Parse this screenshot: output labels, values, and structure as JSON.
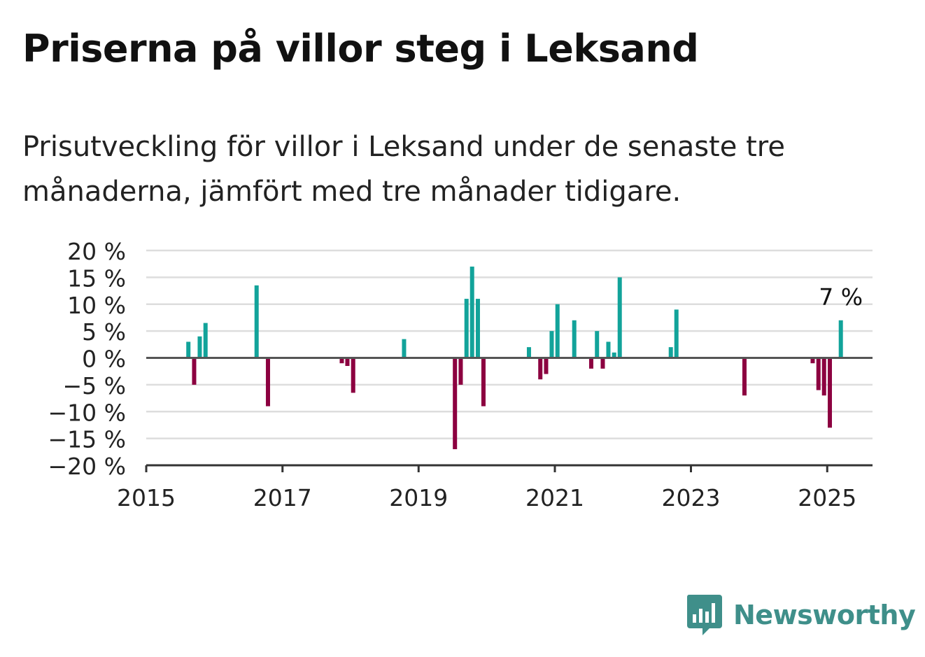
{
  "title": "Priserna på villor steg i Leksand",
  "subtitle": "Prisutveckling för villor i Leksand under de senaste tre månaderna, jämfört med tre månader tidigare.",
  "brand": {
    "name": "Newsworthy",
    "icon": "newsworthy-logo-icon"
  },
  "colors": {
    "positive": "#12a39a",
    "negative": "#8c0040",
    "grid": "#dddddd",
    "axis": "#333333",
    "text": "#222222"
  },
  "chart_data": {
    "type": "bar",
    "x_axis": {
      "type": "date",
      "ticks": [
        "2015",
        "2017",
        "2019",
        "2021",
        "2023",
        "2025"
      ],
      "range": [
        "2015-01-01",
        "2025-09-01"
      ]
    },
    "y_axis": {
      "range": [
        -20,
        20
      ],
      "ticks": [
        20,
        15,
        10,
        5,
        0,
        -5,
        -10,
        -15,
        -20
      ],
      "tick_labels": [
        "20 %",
        "15 %",
        "10 %",
        "5 %",
        "0 %",
        "−5 %",
        "−10 %",
        "−15 %",
        "−20 %"
      ]
    },
    "grid": true,
    "annotation": {
      "date": "2025-03",
      "label": "7 %"
    },
    "points": [
      {
        "date": "2015-08",
        "value": 3
      },
      {
        "date": "2015-09",
        "value": -5
      },
      {
        "date": "2015-10",
        "value": 4
      },
      {
        "date": "2015-11",
        "value": 6.5
      },
      {
        "date": "2016-08",
        "value": 13.5
      },
      {
        "date": "2016-10",
        "value": -9
      },
      {
        "date": "2017-11",
        "value": -1
      },
      {
        "date": "2017-12",
        "value": -1.5
      },
      {
        "date": "2018-01",
        "value": -6.5
      },
      {
        "date": "2018-10",
        "value": 3.5
      },
      {
        "date": "2019-07",
        "value": -17
      },
      {
        "date": "2019-08",
        "value": -5
      },
      {
        "date": "2019-09",
        "value": 11
      },
      {
        "date": "2019-10",
        "value": 17
      },
      {
        "date": "2019-11",
        "value": 11
      },
      {
        "date": "2019-12",
        "value": -9
      },
      {
        "date": "2020-08",
        "value": 2
      },
      {
        "date": "2020-10",
        "value": -4
      },
      {
        "date": "2020-11",
        "value": -3
      },
      {
        "date": "2020-12",
        "value": 5
      },
      {
        "date": "2021-01",
        "value": 10
      },
      {
        "date": "2021-04",
        "value": 7
      },
      {
        "date": "2021-07",
        "value": -2
      },
      {
        "date": "2021-08",
        "value": 5
      },
      {
        "date": "2021-09",
        "value": -2
      },
      {
        "date": "2021-10",
        "value": 3
      },
      {
        "date": "2021-11",
        "value": 1
      },
      {
        "date": "2021-12",
        "value": 15
      },
      {
        "date": "2022-09",
        "value": 2
      },
      {
        "date": "2022-10",
        "value": 9
      },
      {
        "date": "2023-10",
        "value": -7
      },
      {
        "date": "2024-10",
        "value": -1
      },
      {
        "date": "2024-11",
        "value": -6
      },
      {
        "date": "2024-12",
        "value": -7
      },
      {
        "date": "2025-01",
        "value": -13
      },
      {
        "date": "2025-03",
        "value": 7
      }
    ]
  }
}
